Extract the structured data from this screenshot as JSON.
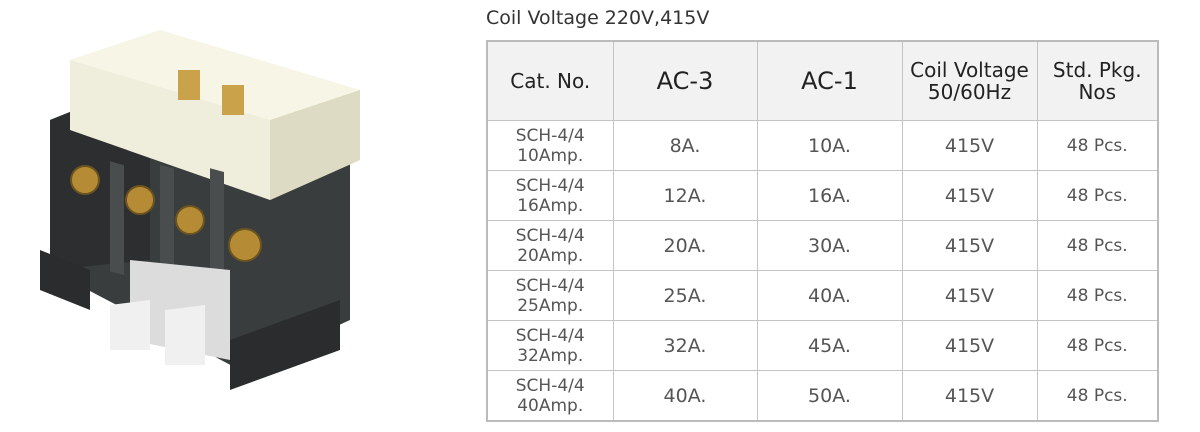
{
  "title": "Coil Voltage 220V,415V",
  "table": {
    "header": [
      "Cat. No.",
      "AC-3",
      "AC-1",
      "Coil Voltage\n50/60Hz",
      "Std. Pkg.\nNos"
    ],
    "rows": [
      [
        "SCH-4/4\n10Amp.",
        "8A.",
        "10A.",
        "415V",
        "48 Pcs."
      ],
      [
        "SCH-4/4\n16Amp.",
        "12A.",
        "16A.",
        "415V",
        "48 Pcs."
      ],
      [
        "SCH-4/4\n20Amp.",
        "20A.",
        "30A.",
        "415V",
        "48 Pcs."
      ],
      [
        "SCH-4/4\n25Amp.",
        "25A.",
        "40A.",
        "415V",
        "48 Pcs."
      ],
      [
        "SCH-4/4\n32Amp.",
        "32A.",
        "45A.",
        "415V",
        "48 Pcs."
      ],
      [
        "SCH-4/4\n40Amp.",
        "40A.",
        "50A.",
        "415V",
        "48 Pcs."
      ]
    ]
  }
}
